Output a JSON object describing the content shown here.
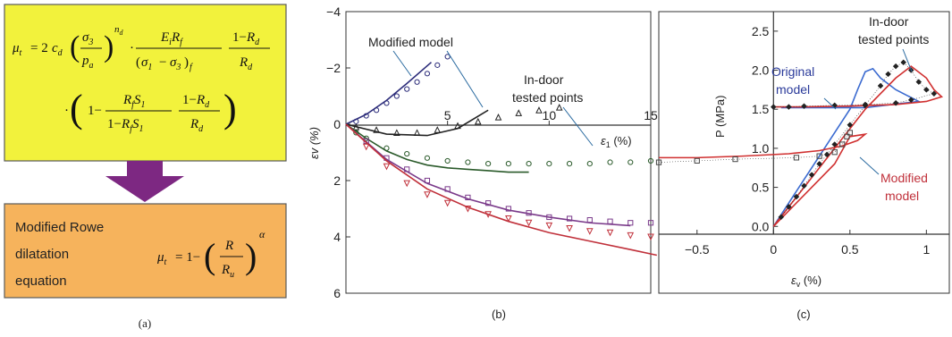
{
  "panel_a": {
    "equation_line1": "μt = 2cd (σ3/pa)^nd · EiRf/(σ1−σ3)f · (1−Rd)/Rd",
    "equation_line2": "· (1 − RfS1/(1−RfS1) · (1−Rd)/Rd)",
    "rowe_label_lines": [
      "Modified Rowe",
      "dilatation",
      "equation"
    ],
    "rowe_equation": "μt = 1 − (R/Ru)^α",
    "caption": "(a)",
    "colors": {
      "top_box": "#f2f23c",
      "bottom_box": "#f6b35c",
      "arrow": "#7d2882"
    }
  },
  "panel_b": {
    "caption": "(b)",
    "chart_data": {
      "type": "scatter",
      "xlabel": "ε1 (%)",
      "ylabel": "εv (%)",
      "xlim": [
        0,
        15
      ],
      "ylim": [
        -4,
        6
      ],
      "y_inverted": true,
      "x_ticks": [
        "5",
        "10",
        "15"
      ],
      "y_ticks": [
        "−4",
        "−2",
        "0",
        "2",
        "4",
        "6"
      ],
      "annotations": [
        "Modified model",
        "In-door",
        "tested points"
      ],
      "series": [
        {
          "marker": "circle",
          "color": "#2c2c7a",
          "x": [
            0.5,
            1,
            1.5,
            2,
            2.5,
            3,
            3.5,
            4,
            4.5,
            5
          ],
          "y": [
            -0.1,
            -0.3,
            -0.5,
            -0.75,
            -1,
            -1.25,
            -1.5,
            -1.8,
            -2.1,
            -2.4
          ],
          "curve_x": [
            0,
            1,
            2,
            3,
            4.2
          ],
          "curve_y": [
            0,
            -0.35,
            -0.85,
            -1.45,
            -2.2
          ]
        },
        {
          "marker": "triangle",
          "color": "#222222",
          "x": [
            0.5,
            1.5,
            2.5,
            3.5,
            4.5,
            5.5,
            6.5,
            7.5,
            8.5,
            9.5,
            10.5
          ],
          "y": [
            0.1,
            0.2,
            0.3,
            0.3,
            0.2,
            0.05,
            -0.1,
            -0.25,
            -0.4,
            -0.5,
            -0.6
          ],
          "curve_x": [
            0,
            2,
            4,
            5.5,
            7
          ],
          "curve_y": [
            0,
            0.35,
            0.4,
            0.15,
            -0.5
          ]
        },
        {
          "marker": "circle",
          "color": "#2a5a2a",
          "x": [
            0.5,
            1,
            2,
            3,
            4,
            5,
            6,
            7,
            8,
            9,
            10,
            11,
            12,
            13,
            14,
            15
          ],
          "y": [
            0.3,
            0.5,
            0.85,
            1.05,
            1.2,
            1.3,
            1.35,
            1.4,
            1.4,
            1.4,
            1.4,
            1.4,
            1.4,
            1.35,
            1.35,
            1.3
          ],
          "curve_x": [
            0,
            1,
            2,
            3,
            4,
            5,
            6,
            7,
            8,
            9
          ],
          "curve_y": [
            0,
            0.5,
            0.95,
            1.25,
            1.45,
            1.55,
            1.6,
            1.65,
            1.7,
            1.7
          ]
        },
        {
          "marker": "square",
          "color": "#7a3a8a",
          "x": [
            1,
            2,
            3,
            4,
            5,
            6,
            7,
            8,
            9,
            10,
            11,
            12,
            13,
            14,
            15
          ],
          "y": [
            0.6,
            1.2,
            1.6,
            2.0,
            2.3,
            2.6,
            2.8,
            3.0,
            3.15,
            3.3,
            3.35,
            3.4,
            3.45,
            3.5,
            3.5
          ],
          "curve_x": [
            0,
            2,
            4,
            6,
            8,
            10,
            12,
            14
          ],
          "curve_y": [
            0,
            1.25,
            2.1,
            2.65,
            3.05,
            3.3,
            3.5,
            3.6
          ]
        },
        {
          "marker": "triangle-down",
          "color": "#c0303a",
          "x": [
            1,
            2,
            3,
            4,
            5,
            6,
            7,
            8,
            9,
            10,
            11,
            12,
            13,
            14,
            15
          ],
          "y": [
            0.8,
            1.5,
            2.1,
            2.5,
            2.8,
            3.0,
            3.2,
            3.35,
            3.5,
            3.6,
            3.7,
            3.8,
            3.85,
            3.95,
            4.0
          ],
          "curve_x": [
            0,
            2,
            4,
            6,
            8,
            10,
            12,
            14,
            15.3
          ],
          "curve_y": [
            0,
            1.3,
            2.3,
            2.95,
            3.45,
            3.85,
            4.15,
            4.45,
            4.65
          ]
        }
      ]
    }
  },
  "panel_c": {
    "caption": "(c)",
    "chart_data": {
      "type": "line",
      "xlabel": "εv (%)",
      "ylabel": "P (MPa)",
      "xlim": [
        -0.75,
        1.15
      ],
      "ylim": [
        -0.1,
        2.75
      ],
      "x_ticks": [
        "−0.5",
        "0",
        "0.5",
        "1"
      ],
      "y_ticks": [
        "0.0",
        "0.5",
        "1.0",
        "1.5",
        "2.0",
        "2.5"
      ],
      "annotations": [
        "Original",
        "model",
        "In-door",
        "tested points",
        "Modified",
        "model"
      ],
      "series": [
        {
          "color": "#3a6ad0",
          "x": [
            0,
            0.1,
            0.2,
            0.3,
            0.4,
            0.5,
            0.55,
            0.6,
            0.65,
            0.7,
            0.8,
            0.9,
            0.95,
            0.6,
            0.3,
            0.15,
            0.05,
            0.1,
            0.2,
            0.3,
            0.35
          ],
          "y": [
            0,
            0.3,
            0.6,
            0.9,
            1.2,
            1.5,
            1.75,
            1.98,
            2.02,
            1.9,
            1.75,
            1.65,
            1.6,
            1.52,
            1.52,
            1.52,
            1.52,
            1.52,
            1.52,
            1.52,
            1.52
          ]
        },
        {
          "color": "#d03030",
          "x": [
            -0.75,
            -0.5,
            -0.2,
            0.1,
            0.3,
            0.45,
            0.55,
            0.6,
            0.5,
            0.4,
            0.2,
            0,
            0.2,
            0.4,
            0.6,
            0.8,
            0.9,
            1.0,
            1.05,
            1.1,
            1.0,
            0.8,
            0.5,
            0.2,
            0
          ],
          "y": [
            0.88,
            0.88,
            0.9,
            0.93,
            0.97,
            1.03,
            1.1,
            1.18,
            1.15,
            0.8,
            0.4,
            0,
            0.5,
            1.0,
            1.5,
            1.9,
            2.05,
            1.9,
            1.75,
            1.66,
            1.6,
            1.56,
            1.54,
            1.53,
            1.53
          ]
        },
        {
          "marker": "diamond",
          "color": "#222222",
          "x": [
            0.05,
            0.1,
            0.15,
            0.2,
            0.25,
            0.3,
            0.35,
            0.4,
            0.5,
            0.6,
            0.7,
            0.75,
            0.8,
            0.85,
            0.9,
            0.95,
            1.0,
            1.05,
            0.9,
            0.8,
            0.6,
            0.4,
            0.2,
            0.1,
            0.0
          ],
          "y": [
            0.12,
            0.25,
            0.38,
            0.52,
            0.66,
            0.8,
            0.92,
            1.05,
            1.3,
            1.55,
            1.8,
            1.95,
            2.05,
            2.1,
            2.0,
            1.85,
            1.75,
            1.7,
            1.62,
            1.58,
            1.56,
            1.55,
            1.54,
            1.53,
            1.53
          ]
        },
        {
          "marker": "square",
          "color": "#444444",
          "x": [
            -0.75,
            -0.5,
            -0.25,
            0.15,
            0.3,
            0.4,
            0.45,
            0.48,
            0.5
          ],
          "y": [
            0.82,
            0.84,
            0.86,
            0.88,
            0.9,
            0.95,
            1.05,
            1.15,
            1.2
          ]
        }
      ]
    }
  }
}
